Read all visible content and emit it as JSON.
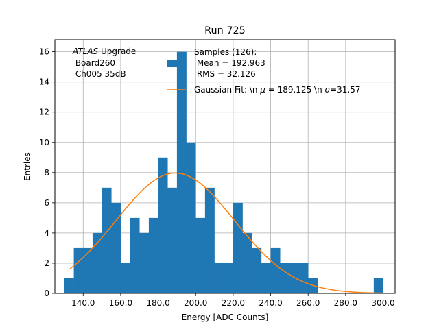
{
  "chart_data": {
    "type": "bar",
    "title": "Run 725",
    "xlabel": "Energy [ADC Counts]",
    "ylabel": "Entries",
    "xlim": [
      124.9,
      306.4
    ],
    "ylim": [
      0,
      16.8
    ],
    "xticks": [
      140,
      160,
      180,
      200,
      220,
      240,
      260,
      280,
      300
    ],
    "xtick_labels": [
      "140.0",
      "160.0",
      "180.0",
      "200.0",
      "220.0",
      "240.0",
      "260.0",
      "280.0",
      "300.0"
    ],
    "yticks": [
      0,
      2,
      4,
      6,
      8,
      10,
      12,
      14,
      16
    ],
    "ytick_labels": [
      "0",
      "2",
      "4",
      "6",
      "8",
      "10",
      "12",
      "14",
      "16"
    ],
    "grid": true,
    "bin_edges": [
      130.0,
      135.0,
      140.0,
      145.0,
      150.0,
      155.0,
      160.0,
      165.0,
      170.0,
      175.0,
      180.0,
      185.0,
      190.0,
      195.0,
      200.0,
      205.0,
      210.0,
      215.0,
      220.0,
      225.0,
      230.0,
      235.0,
      240.0,
      245.0,
      250.0,
      255.0,
      260.0,
      265.0,
      270.0,
      275.0,
      280.0,
      285.0,
      290.0,
      295.0,
      300.0
    ],
    "counts": [
      1,
      3,
      3,
      4,
      7,
      6,
      2,
      5,
      4,
      5,
      9,
      7,
      16,
      10,
      5,
      7,
      2,
      2,
      6,
      4,
      3,
      2,
      3,
      2,
      2,
      2,
      1,
      0,
      0,
      0,
      0,
      0,
      0,
      1
    ],
    "fit": {
      "mu": 189.125,
      "sigma": 31.57,
      "amplitude": 7.97,
      "x_start": 133.0,
      "x_end": 300.0
    },
    "series": [
      {
        "name": "Samples (126):\n Mean = 192.963\n RMS = 32.126",
        "type": "histogram",
        "color": "#1f77b4"
      },
      {
        "name": "Gaussian Fit: \\n μ = 189.125 \\n σ=31.57",
        "type": "line",
        "color": "#ff7f0e"
      }
    ],
    "legend": {
      "placement": "top-center",
      "hist_lines": [
        "Samples (126):",
        " Mean = 192.963",
        " RMS = 32.126"
      ],
      "fit_prefix": "Gaussian Fit: \\n ",
      "fit_mu_symbol": "μ",
      "fit_mid": " = 189.125 \\n ",
      "fit_sigma_symbol": "σ",
      "fit_suffix": "=31.57"
    },
    "annotation": {
      "placement": "top-left",
      "italic": "ATLAS",
      "rest": " Upgrade",
      "lines": [
        " Board260",
        " Ch005 35dB"
      ]
    }
  }
}
